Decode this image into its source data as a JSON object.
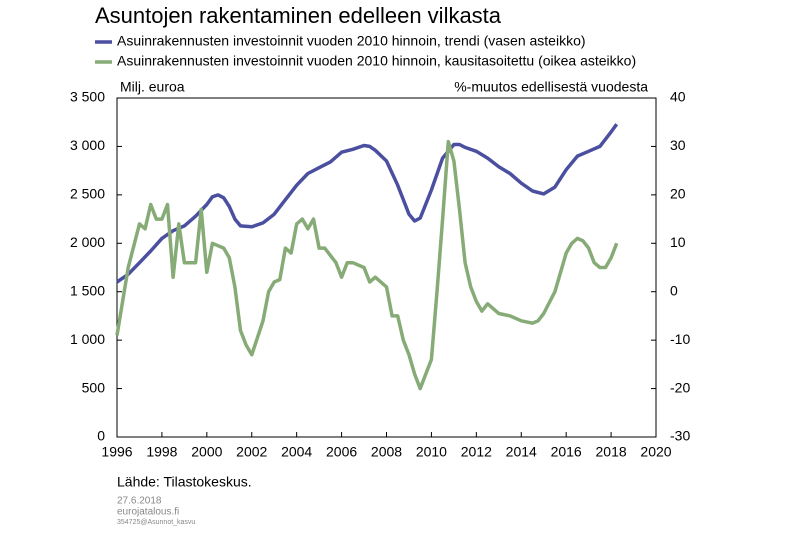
{
  "chart_data": {
    "type": "line",
    "title": "Asuntojen rakentaminen edelleen vilkasta",
    "y_label": "Milj. euroa",
    "y2_label": "%-muutos edellisestä vuodesta",
    "source": "Lähde: Tilastokeskus.",
    "meta": [
      "27.6.2018",
      "eurojatalous.fi",
      "354725@Asunnot_kasvu"
    ],
    "xlim": [
      1996,
      2020
    ],
    "xticks": [
      1996,
      1998,
      2000,
      2002,
      2004,
      2006,
      2008,
      2010,
      2012,
      2014,
      2016,
      2018,
      2020
    ],
    "ylim": [
      0,
      3500
    ],
    "yticks": [
      0,
      500,
      {
        "value": 1000,
        "label": "1 000"
      },
      {
        "value": 1500,
        "label": "1 500"
      },
      {
        "value": 2000,
        "label": "2 000"
      },
      {
        "value": 2500,
        "label": "2 500"
      },
      {
        "value": 3000,
        "label": "3 000"
      },
      {
        "value": 3500,
        "label": "3 500"
      }
    ],
    "y2lim": [
      -30,
      40
    ],
    "y2ticks": [
      -30,
      -20,
      -10,
      0,
      10,
      20,
      30,
      40
    ],
    "series": [
      {
        "name": "Asuinrakennusten investoinnit vuoden 2010 hinnoin, trendi (vasen asteikko)",
        "color": "#4b4f9f",
        "x": [
          1996.0,
          1996.5,
          1997.0,
          1997.5,
          1998.0,
          1998.5,
          1999.0,
          1999.5,
          2000.0,
          2000.25,
          2000.5,
          2000.75,
          2001.0,
          2001.25,
          2001.5,
          2002.0,
          2002.5,
          2003.0,
          2003.5,
          2004.0,
          2004.5,
          2005.0,
          2005.5,
          2006.0,
          2006.5,
          2007.0,
          2007.25,
          2007.5,
          2008.0,
          2008.5,
          2009.0,
          2009.25,
          2009.5,
          2010.0,
          2010.5,
          2011.0,
          2011.25,
          2011.5,
          2012.0,
          2012.5,
          2013.0,
          2013.5,
          2014.0,
          2014.5,
          2015.0,
          2015.5,
          2016.0,
          2016.5,
          2017.0,
          2017.5,
          2018.0,
          2018.25
        ],
        "values": [
          1600,
          1680,
          1800,
          1920,
          2050,
          2130,
          2180,
          2280,
          2400,
          2480,
          2500,
          2470,
          2380,
          2250,
          2180,
          2170,
          2210,
          2300,
          2450,
          2600,
          2720,
          2780,
          2840,
          2940,
          2970,
          3010,
          3000,
          2960,
          2850,
          2600,
          2300,
          2230,
          2260,
          2550,
          2880,
          3020,
          3020,
          2990,
          2950,
          2880,
          2790,
          2720,
          2620,
          2540,
          2510,
          2580,
          2760,
          2900,
          2950,
          3000,
          3150,
          3230
        ]
      },
      {
        "name": "Asuinrakennusten investoinnit vuoden 2010 hinnoin, kausitasoitettu (oikea asteikko)",
        "color": "#86ab76",
        "axis": "y2",
        "x": [
          1996.0,
          1996.5,
          1997.0,
          1997.25,
          1997.5,
          1997.75,
          1998.0,
          1998.25,
          1998.5,
          1998.75,
          1999.0,
          1999.5,
          1999.75,
          2000.0,
          2000.25,
          2000.75,
          2001.0,
          2001.25,
          2001.5,
          2001.75,
          2002.0,
          2002.5,
          2002.75,
          2003.0,
          2003.25,
          2003.5,
          2003.75,
          2004.0,
          2004.25,
          2004.5,
          2004.75,
          2005.0,
          2005.25,
          2005.75,
          2006.0,
          2006.25,
          2006.5,
          2007.0,
          2007.25,
          2007.5,
          2008.0,
          2008.25,
          2008.5,
          2008.75,
          2009.0,
          2009.25,
          2009.5,
          2009.75,
          2010.0,
          2010.25,
          2010.5,
          2010.75,
          2011.0,
          2011.25,
          2011.5,
          2011.75,
          2012.0,
          2012.25,
          2012.5,
          2013.0,
          2013.5,
          2014.0,
          2014.5,
          2014.75,
          2015.0,
          2015.5,
          2016.0,
          2016.25,
          2016.5,
          2016.75,
          2017.0,
          2017.25,
          2017.5,
          2017.75,
          2018.0,
          2018.25
        ],
        "values": [
          -9,
          5,
          14,
          13,
          18,
          15,
          15,
          18,
          3,
          14,
          6,
          6,
          17,
          4,
          10,
          9,
          7,
          1,
          -8,
          -11,
          -13,
          -6,
          0,
          2,
          2.5,
          9,
          8,
          14,
          15,
          13,
          15,
          9,
          9,
          6,
          3,
          6,
          6,
          5,
          2,
          3,
          1,
          -5,
          -5,
          -10,
          -13,
          -17,
          -20,
          -17,
          -14,
          0,
          15,
          31,
          27,
          17,
          6,
          1,
          -2,
          -4,
          -2.5,
          -4.5,
          -5,
          -6,
          -6.5,
          -6,
          -4.5,
          0,
          8,
          10,
          11,
          10.5,
          9,
          6,
          5,
          5,
          7,
          10
        ]
      }
    ]
  }
}
